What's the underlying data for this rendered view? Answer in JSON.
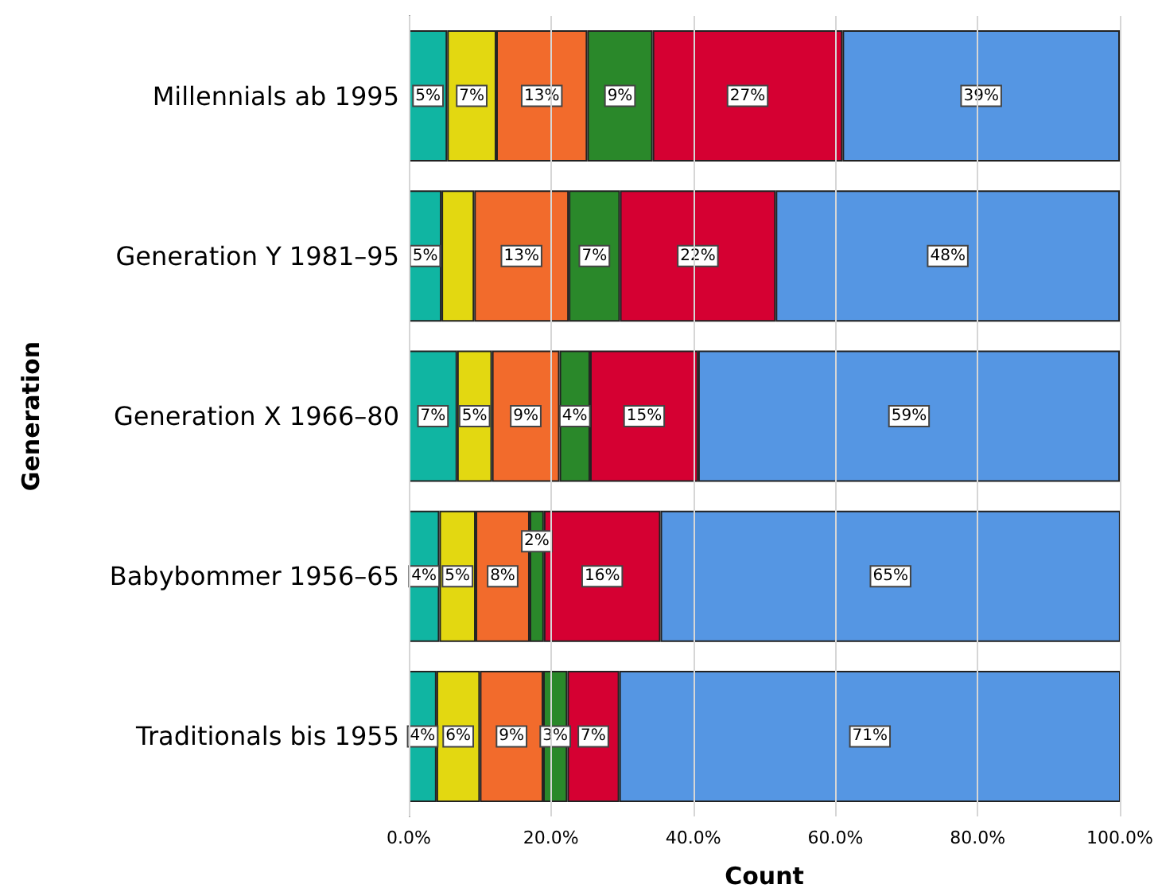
{
  "chart_data": {
    "type": "bar",
    "orientation": "horizontal",
    "stacked": true,
    "xlabel": "Count",
    "ylabel": "Generation",
    "categories": [
      "Millennials ab 1995",
      "Generation Y 1981–95",
      "Generation X 1966–80",
      "Babybommer 1956–65",
      "Traditionals bis 1955"
    ],
    "series": [
      {
        "color": "#10b5a2",
        "values": [
          5.4,
          4.6,
          6.8,
          4.3,
          3.9
        ],
        "value_labels": [
          "5%",
          "5%",
          "7%",
          "4%",
          "4%"
        ]
      },
      {
        "color": "#e3d811",
        "values": [
          6.9,
          4.6,
          4.9,
          5.1,
          6.1
        ],
        "value_labels": [
          "7%",
          null,
          "5%",
          "5%",
          "6%"
        ]
      },
      {
        "color": "#f26b2c",
        "values": [
          12.8,
          13.3,
          9.5,
          7.6,
          8.9
        ],
        "value_labels": [
          "13%",
          "13%",
          "9%",
          "8%",
          "9%"
        ]
      },
      {
        "color": "#2a882a",
        "values": [
          9.2,
          7.2,
          4.3,
          2.0,
          3.4
        ],
        "value_labels": [
          "9%",
          "7%",
          "4%",
          "2%",
          "3%"
        ]
      },
      {
        "color": "#d50032",
        "values": [
          26.7,
          21.9,
          15.2,
          16.4,
          7.3
        ],
        "value_labels": [
          "27%",
          "22%",
          "15%",
          "16%",
          "7%"
        ]
      },
      {
        "color": "#5596e3",
        "values": [
          39.0,
          48.4,
          59.3,
          64.7,
          70.6
        ],
        "value_labels": [
          "39%",
          "48%",
          "59%",
          "65%",
          "71%"
        ]
      }
    ],
    "xlim": [
      0,
      100
    ],
    "xticks": [
      {
        "value": 0,
        "label": "0.0%"
      },
      {
        "value": 20,
        "label": "20.0%"
      },
      {
        "value": 40,
        "label": "40.0%"
      },
      {
        "value": 60,
        "label": "60.0%"
      },
      {
        "value": 80,
        "label": "80.0%"
      },
      {
        "value": 100,
        "label": "100.0%"
      }
    ],
    "grid": "x"
  }
}
